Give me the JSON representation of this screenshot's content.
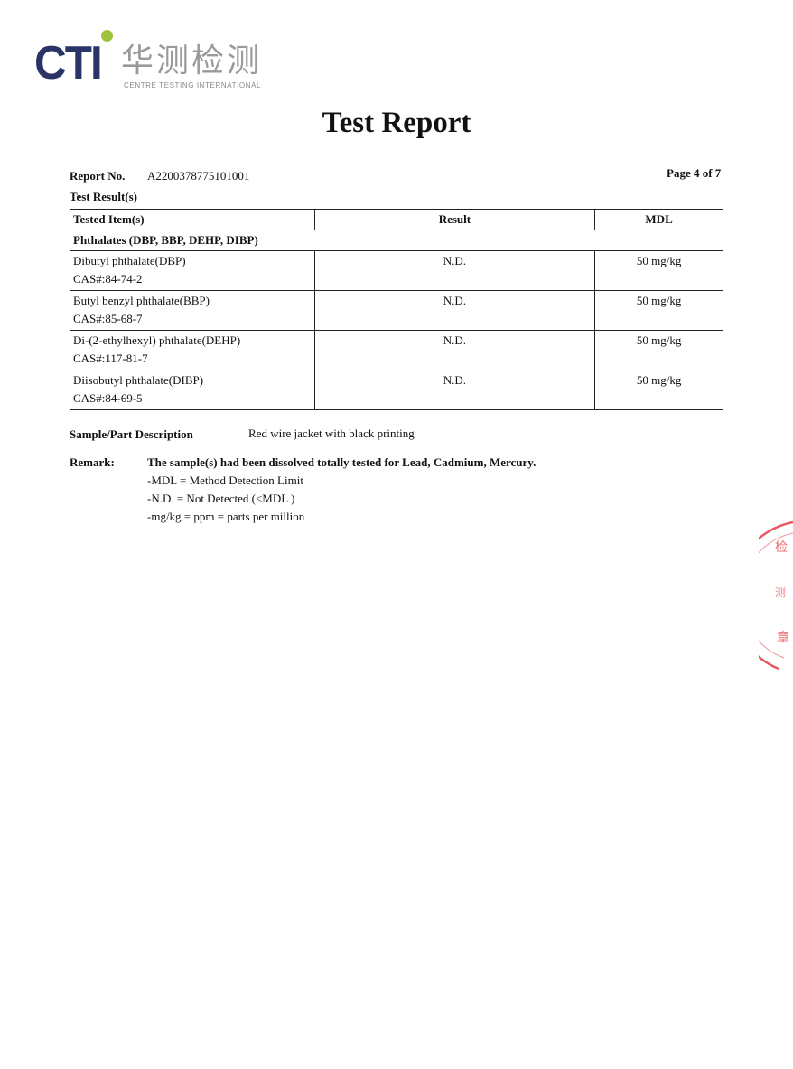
{
  "logo": {
    "brand": "CTI",
    "chinese": "华测检测",
    "english": "CENTRE TESTING INTERNATIONAL",
    "brand_color": "#2b3466",
    "dot_color": "#9dc43a"
  },
  "title": "Test Report",
  "report_no_label": "Report No.",
  "report_no": "A2200378775101001",
  "page": "Page 4 of 7",
  "section": "Test Result(s)",
  "table": {
    "headers": [
      "Tested Item(s)",
      "Result",
      "MDL"
    ],
    "group": "Phthalates (DBP, BBP, DEHP, DIBP)",
    "rows": [
      {
        "name": "Dibutyl phthalate(DBP)",
        "cas": "CAS#:84-74-2",
        "result": "N.D.",
        "mdl": "50 mg/kg"
      },
      {
        "name": "Butyl benzyl phthalate(BBP)",
        "cas": "CAS#:85-68-7",
        "result": "N.D.",
        "mdl": "50 mg/kg"
      },
      {
        "name": "Di-(2-ethylhexyl) phthalate(DEHP)",
        "cas": "CAS#:117-81-7",
        "result": "N.D.",
        "mdl": "50 mg/kg"
      },
      {
        "name": "Diisobutyl phthalate(DIBP)",
        "cas": "CAS#:84-69-5",
        "result": "N.D.",
        "mdl": "50 mg/kg"
      }
    ]
  },
  "sample_label": "Sample/Part Description",
  "sample_value": "Red wire jacket with black printing",
  "remark_label": "Remark:",
  "remarks": [
    "The sample(s) had been dissolved totally tested for Lead, Cadmium, Mercury.",
    "-MDL = Method Detection Limit",
    "-N.D. = Not Detected (<MDL )",
    "-mg/kg = ppm = parts per million"
  ],
  "stamp_color": "#e0303a"
}
